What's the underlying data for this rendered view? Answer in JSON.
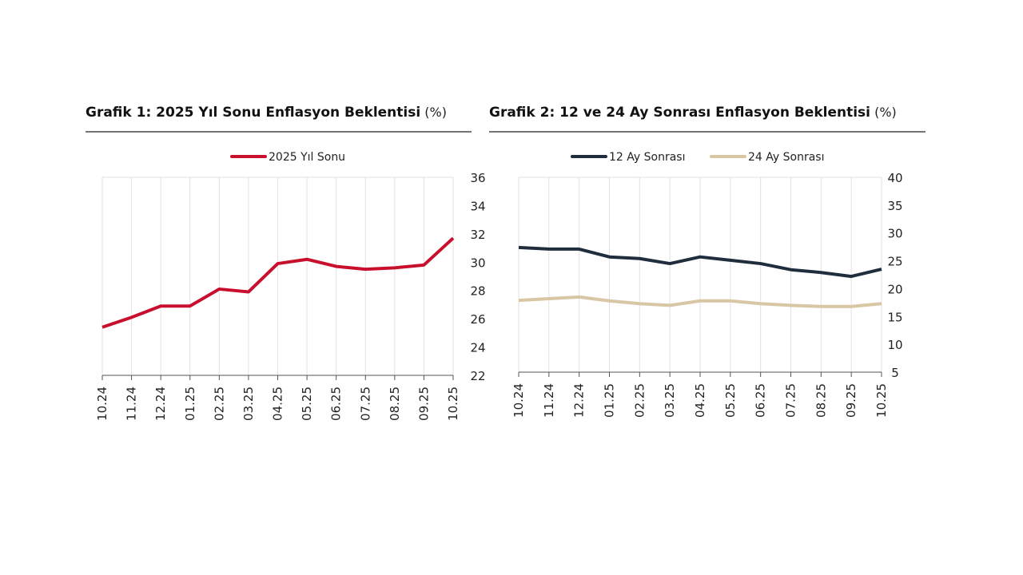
{
  "chart_data": [
    {
      "type": "line",
      "title": "Grafik 1: 2025 Yıl Sonu Enflasyon Beklentisi",
      "unit": "(%)",
      "categories": [
        "10.24",
        "11.24",
        "12.24",
        "01.25",
        "02.25",
        "03.25",
        "04.25",
        "05.25",
        "06.25",
        "07.25",
        "08.25",
        "09.25",
        "10.25"
      ],
      "ylim": [
        22,
        36
      ],
      "yticks": [
        22,
        24,
        26,
        28,
        30,
        32,
        34,
        36
      ],
      "legend_position": "top",
      "grid": "vertical",
      "series": [
        {
          "name": "2025 Yıl Sonu",
          "color": "#c8102e",
          "values": [
            25.4,
            26.1,
            26.9,
            26.9,
            28.1,
            27.9,
            29.9,
            30.2,
            29.7,
            29.5,
            29.6,
            29.8,
            31.7
          ]
        }
      ]
    },
    {
      "type": "line",
      "title": "Grafik 2: 12 ve 24 Ay Sonrası Enflasyon Beklentisi",
      "unit": "(%)",
      "categories": [
        "10.24",
        "11.24",
        "12.24",
        "01.25",
        "02.25",
        "03.25",
        "04.25",
        "05.25",
        "06.25",
        "07.25",
        "08.25",
        "09.25",
        "10.25"
      ],
      "ylim": [
        5,
        40
      ],
      "yticks": [
        5,
        10,
        15,
        20,
        25,
        30,
        35,
        40
      ],
      "legend_position": "top",
      "grid": "vertical",
      "series": [
        {
          "name": "12 Ay Sonrası",
          "color": "#1f2d3d",
          "values": [
            27.4,
            27.1,
            27.1,
            25.7,
            25.4,
            24.5,
            25.7,
            25.1,
            24.5,
            23.4,
            22.9,
            22.2,
            23.5
          ]
        },
        {
          "name": "24 Ay Sonrası",
          "color": "#d8c6a4",
          "values": [
            17.9,
            18.2,
            18.5,
            17.8,
            17.3,
            17.0,
            17.8,
            17.8,
            17.3,
            17.0,
            16.8,
            16.8,
            17.3
          ]
        }
      ]
    }
  ]
}
